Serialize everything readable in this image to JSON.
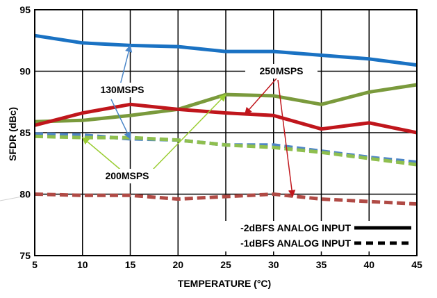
{
  "chart_data": {
    "type": "line",
    "xlabel": "TEMPERATURE (°C)",
    "ylabel": "SFDR (dBc)",
    "xlim": [
      5,
      45
    ],
    "ylim": [
      75,
      95
    ],
    "x_ticks": [
      "5",
      "10",
      "15",
      "20",
      "25",
      "30",
      "35",
      "40",
      "45"
    ],
    "y_ticks": [
      "75",
      "80",
      "85",
      "90",
      "95"
    ],
    "grid": true,
    "x": [
      5,
      10,
      15,
      20,
      25,
      30,
      35,
      40,
      45
    ],
    "series": [
      {
        "group": "130MSPS",
        "input": "-2dBFS",
        "values": [
          92.9,
          92.3,
          92.1,
          92.0,
          91.6,
          91.6,
          91.3,
          91.0,
          90.5
        ],
        "color": "#1a72c3",
        "dash": false
      },
      {
        "group": "130MSPS",
        "input": "-1dBFS",
        "values": [
          84.9,
          84.8,
          84.5,
          84.4,
          84.0,
          84.0,
          83.5,
          83.0,
          82.6
        ],
        "color": "#4f86c6",
        "dash": true
      },
      {
        "group": "200MSPS",
        "input": "-2dBFS",
        "values": [
          85.9,
          86.0,
          86.4,
          86.9,
          88.1,
          88.0,
          87.3,
          88.3,
          88.9
        ],
        "color": "#7a9a3c",
        "dash": false
      },
      {
        "group": "200MSPS",
        "input": "-1dBFS",
        "values": [
          84.7,
          84.6,
          84.6,
          84.4,
          84.0,
          83.8,
          83.4,
          82.9,
          82.4
        ],
        "color": "#8fbf4f",
        "dash": true
      },
      {
        "group": "250MSPS",
        "input": "-2dBFS",
        "values": [
          85.6,
          86.6,
          87.3,
          86.9,
          86.6,
          86.4,
          85.3,
          85.8,
          85.0
        ],
        "color": "#c0161c",
        "dash": false
      },
      {
        "group": "250MSPS",
        "input": "-1dBFS",
        "values": [
          80.0,
          79.9,
          79.9,
          79.6,
          79.8,
          80.0,
          79.6,
          79.4,
          79.2
        ],
        "color": "#b04a45",
        "dash": true
      }
    ],
    "annotations": [
      {
        "label": "130MSPS",
        "arrows_to": [
          [
            15,
            92.1
          ],
          [
            15,
            84.5
          ]
        ],
        "arrow_color": "#4a86c8"
      },
      {
        "label": "200MSPS",
        "arrows_to": [
          [
            10,
            84.6
          ],
          [
            25,
            88.1
          ]
        ],
        "arrow_color": "#9acd32"
      },
      {
        "label": "250MSPS",
        "arrows_to": [
          [
            27,
            86.5
          ],
          [
            32,
            79.8
          ]
        ],
        "arrow_color": "#c0161c"
      }
    ],
    "legend": {
      "placement": "bottom-right",
      "entries": [
        {
          "label": "-2dBFS ANALOG INPUT",
          "style": "solid"
        },
        {
          "label": "-1dBFS ANALOG INPUT",
          "style": "dashed"
        }
      ]
    }
  }
}
